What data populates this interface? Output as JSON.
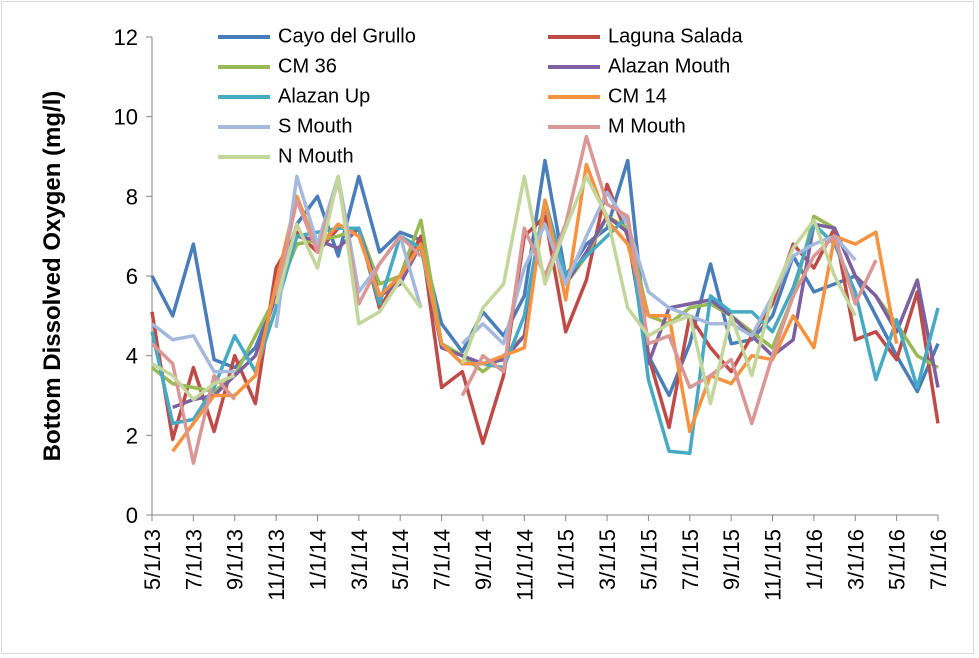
{
  "chart_data": {
    "type": "line",
    "y_label": "Bottom Dissolved Oxygen (mg/l)",
    "categories": [
      "5/1/13",
      null,
      "7/1/13",
      null,
      "9/1/13",
      null,
      "11/1/13",
      null,
      "1/1/14",
      null,
      "3/1/14",
      null,
      "5/1/14",
      null,
      "7/1/14",
      null,
      "9/1/14",
      null,
      "11/1/14",
      null,
      "1/1/15",
      null,
      "3/1/15",
      null,
      "5/1/15",
      null,
      "7/1/15",
      null,
      "9/1/15",
      null,
      "11/1/15",
      null,
      "1/1/16",
      null,
      "3/1/16",
      null,
      "5/1/16",
      null,
      "7/1/16"
    ],
    "ylim": [
      0,
      12
    ],
    "yticks": [
      0,
      2,
      4,
      6,
      8,
      10,
      12
    ],
    "series": [
      {
        "name": "Cayo del Grullo",
        "color": "#4a7ebb",
        "values": [
          6.0,
          5.0,
          6.8,
          3.9,
          3.7,
          4.2,
          5.5,
          7.3,
          8.0,
          6.5,
          8.5,
          6.6,
          7.1,
          6.9,
          4.8,
          4.1,
          5.1,
          4.5,
          5.5,
          8.9,
          6.0,
          6.8,
          7.2,
          8.9,
          4.0,
          3.0,
          4.3,
          6.3,
          4.3,
          4.4,
          5.0,
          6.5,
          5.6,
          5.8,
          6.0,
          5.0,
          4.0,
          3.1,
          4.3
        ]
      },
      {
        "name": "Laguna Salada",
        "color": "#be4b48",
        "values": [
          5.1,
          1.9,
          3.7,
          2.1,
          4.0,
          2.8,
          6.2,
          7.1,
          6.6,
          7.2,
          7.2,
          5.2,
          6.0,
          7.0,
          3.2,
          3.6,
          1.8,
          3.5,
          7.0,
          7.5,
          4.6,
          5.9,
          8.3,
          7.0,
          4.0,
          2.2,
          5.0,
          4.2,
          3.6,
          4.5,
          5.3,
          6.8,
          6.2,
          7.2,
          4.4,
          4.6,
          3.9,
          5.6,
          2.3
        ]
      },
      {
        "name": "CM 36",
        "color": "#98b954",
        "values": [
          3.7,
          3.3,
          3.2,
          3.1,
          3.5,
          4.5,
          5.5,
          6.8,
          6.9,
          7.0,
          7.2,
          5.8,
          6.0,
          7.4,
          4.3,
          4.0,
          3.6,
          4.0,
          4.5,
          7.9,
          5.8,
          6.5,
          7.5,
          7.2,
          5.0,
          4.8,
          5.2,
          5.3,
          5.0,
          4.6,
          4.2,
          5.5,
          7.5,
          7.2,
          6.0,
          5.5,
          4.8,
          4.0,
          3.7
        ]
      },
      {
        "name": "Alazan Mouth",
        "color": "#7d60a0",
        "values": [
          null,
          2.7,
          2.9,
          3.0,
          3.5,
          4.0,
          5.5,
          7.0,
          6.9,
          6.7,
          7.2,
          5.5,
          5.8,
          6.8,
          4.2,
          4.0,
          3.8,
          3.9,
          4.5,
          7.8,
          5.8,
          6.6,
          7.5,
          7.1,
          3.8,
          5.2,
          5.3,
          5.4,
          5.0,
          4.5,
          4.0,
          4.4,
          7.3,
          7.2,
          6.0,
          5.5,
          4.6,
          5.9,
          3.2
        ]
      },
      {
        "name": "Alazan Up",
        "color": "#46aac5",
        "values": [
          4.6,
          2.3,
          2.4,
          3.2,
          4.5,
          3.6,
          5.2,
          7.0,
          7.1,
          7.2,
          7.2,
          5.3,
          7.0,
          6.7,
          4.3,
          3.8,
          3.8,
          3.7,
          5.0,
          7.9,
          6.0,
          6.5,
          7.0,
          7.5,
          3.4,
          1.6,
          1.55,
          5.5,
          5.1,
          5.1,
          4.6,
          5.7,
          7.3,
          6.8,
          5.6,
          3.4,
          4.9,
          3.2,
          5.2
        ]
      },
      {
        "name": "CM 14",
        "color": "#f69240",
        "values": [
          null,
          1.6,
          2.3,
          3.0,
          3.0,
          3.5,
          5.8,
          8.0,
          6.7,
          7.3,
          7.0,
          5.5,
          6.0,
          6.8,
          4.3,
          3.8,
          3.8,
          4.0,
          4.2,
          7.9,
          5.4,
          8.8,
          7.4,
          6.8,
          5.0,
          5.0,
          2.1,
          3.5,
          3.3,
          4.0,
          3.9,
          5.0,
          4.2,
          7.0,
          6.8,
          7.1,
          4.3,
          null,
          null
        ]
      },
      {
        "name": "S Mouth",
        "color": "#a5b9dc",
        "values": [
          4.8,
          4.4,
          4.5,
          3.6,
          3.6,
          null,
          4.7,
          8.5,
          6.8,
          8.5,
          5.6,
          6.3,
          7.0,
          5.2,
          null,
          4.3,
          4.8,
          4.3,
          6.2,
          7.3,
          5.8,
          7.0,
          8.1,
          7.3,
          5.6,
          5.2,
          5.0,
          4.8,
          4.8,
          4.5,
          5.5,
          6.5,
          6.8,
          7.0,
          6.4,
          null,
          null,
          null,
          null
        ]
      },
      {
        "name": "M Mouth",
        "color": "#d99795",
        "values": [
          4.3,
          3.8,
          1.3,
          3.5,
          2.9,
          null,
          5.5,
          7.9,
          6.6,
          8.4,
          5.3,
          6.3,
          7.0,
          6.5,
          null,
          3.0,
          4.0,
          3.6,
          7.2,
          6.0,
          7.3,
          9.5,
          7.8,
          7.5,
          4.3,
          4.5,
          3.2,
          3.5,
          3.9,
          2.3,
          4.0,
          5.5,
          6.5,
          7.0,
          5.3,
          6.4,
          null,
          null,
          null
        ]
      },
      {
        "name": "N Mouth",
        "color": "#c3d69b",
        "values": [
          3.8,
          3.5,
          2.9,
          3.3,
          3.5,
          null,
          5.3,
          7.3,
          6.2,
          8.5,
          4.8,
          5.1,
          5.9,
          5.2,
          null,
          3.8,
          5.2,
          5.8,
          8.5,
          5.8,
          7.2,
          8.5,
          7.5,
          5.2,
          4.5,
          4.8,
          5.0,
          2.8,
          5.0,
          3.5,
          5.5,
          6.7,
          7.4,
          6.0,
          5.0,
          null,
          null,
          null,
          null
        ]
      }
    ]
  }
}
